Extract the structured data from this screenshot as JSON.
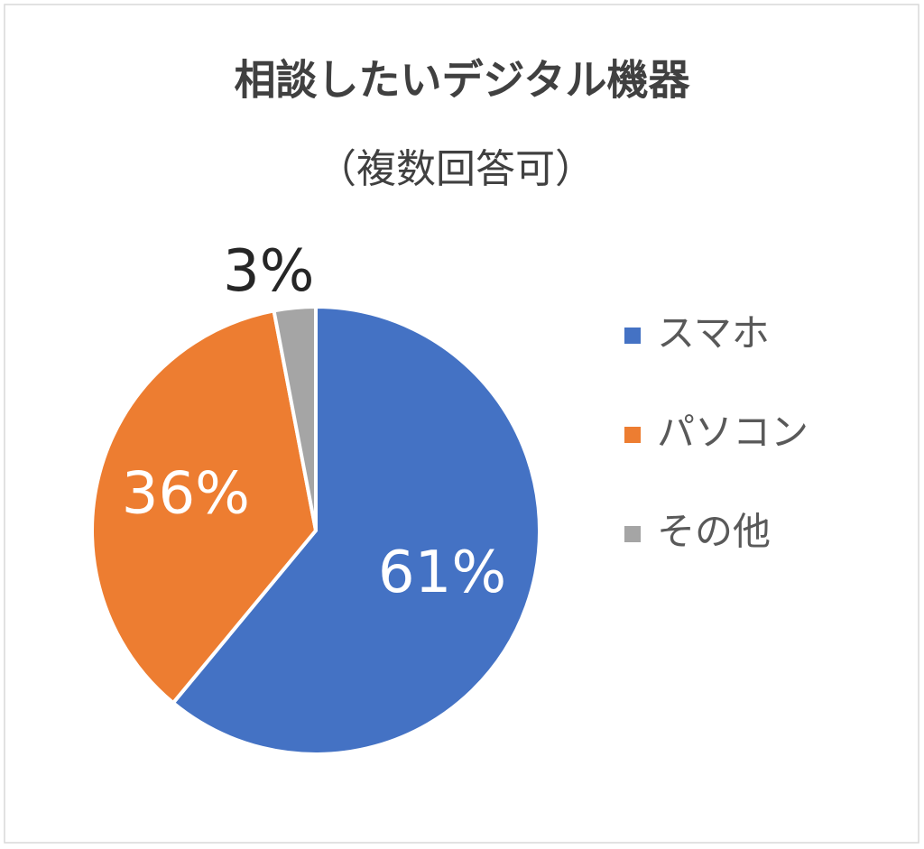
{
  "chart_data": {
    "type": "pie",
    "title": "相談したいデジタル機器",
    "subtitle": "（複数回答可）",
    "categories": [
      "スマホ",
      "パソコン",
      "その他"
    ],
    "values": [
      61,
      36,
      3
    ],
    "value_labels": [
      "61%",
      "36%",
      "3%"
    ],
    "colors": [
      "#4472c4",
      "#ed7d31",
      "#a5a5a5"
    ],
    "legend": "right"
  }
}
